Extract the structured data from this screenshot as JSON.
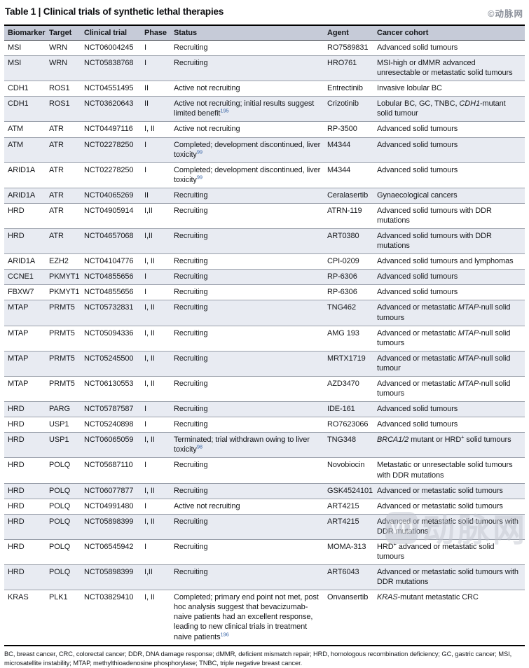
{
  "page": {
    "title": "Table 1 | Clinical trials of synthetic lethal therapies",
    "watermark_top": "©动脉网",
    "watermark_bottom_text": "动脉网",
    "watermark_logo": "VD"
  },
  "colors": {
    "header_bg": "#c6cbd8",
    "row_shaded_bg": "#e8ebf2",
    "reference_superscript": "#3a66a7",
    "border_heavy": "#000000",
    "row_separator": "#9aa0ab"
  },
  "table": {
    "columns": [
      "Biomarker",
      "Target",
      "Clinical trial",
      "Phase",
      "Status",
      "Agent",
      "Cancer cohort"
    ],
    "rows": [
      {
        "biomarker": "MSI",
        "target": "WRN",
        "trial": "NCT06004245",
        "phase": "I",
        "status": [
          {
            "t": "Recruiting"
          }
        ],
        "agent": "RO7589831",
        "cohort": [
          {
            "t": "Advanced solid tumours"
          }
        ]
      },
      {
        "biomarker": "MSI",
        "target": "WRN",
        "trial": "NCT05838768",
        "phase": "I",
        "status": [
          {
            "t": "Recruiting"
          }
        ],
        "agent": "HRO761",
        "cohort": [
          {
            "t": "MSI-high or dMMR advanced unresectable or metastatic solid tumours"
          }
        ]
      },
      {
        "biomarker": "CDH1",
        "target": "ROS1",
        "trial": "NCT04551495",
        "phase": "II",
        "status": [
          {
            "t": "Active not recruiting"
          }
        ],
        "agent": "Entrectinib",
        "cohort": [
          {
            "t": "Invasive lobular BC"
          }
        ]
      },
      {
        "biomarker": "CDH1",
        "target": "ROS1",
        "trial": "NCT03620643",
        "phase": "II",
        "status": [
          {
            "t": "Active not recruiting; initial results suggest limited benefit"
          },
          {
            "t": "195",
            "ref": true
          }
        ],
        "agent": "Crizotinib",
        "cohort": [
          {
            "t": "Lobular BC, GC, TNBC, "
          },
          {
            "t": "CDH1",
            "i": true
          },
          {
            "t": "-mutant solid tumour"
          }
        ]
      },
      {
        "biomarker": "ATM",
        "target": "ATR",
        "trial": "NCT04497116",
        "phase": "I, II",
        "status": [
          {
            "t": "Active not recruiting"
          }
        ],
        "agent": "RP-3500",
        "cohort": [
          {
            "t": "Advanced solid tumours"
          }
        ]
      },
      {
        "biomarker": "ATM",
        "target": "ATR",
        "trial": "NCT02278250",
        "phase": "I",
        "status": [
          {
            "t": "Completed; development discontinued, liver toxicity"
          },
          {
            "t": "99",
            "ref": true
          }
        ],
        "agent": "M4344",
        "cohort": [
          {
            "t": "Advanced solid tumours"
          }
        ]
      },
      {
        "biomarker": "ARID1A",
        "target": "ATR",
        "trial": "NCT02278250",
        "phase": "I",
        "status": [
          {
            "t": "Completed; development discontinued, liver toxicity"
          },
          {
            "t": "99",
            "ref": true
          }
        ],
        "agent": "M4344",
        "cohort": [
          {
            "t": "Advanced solid tumours"
          }
        ]
      },
      {
        "biomarker": "ARID1A",
        "target": "ATR",
        "trial": "NCT04065269",
        "phase": "II",
        "status": [
          {
            "t": "Recruiting"
          }
        ],
        "agent": "Ceralasertib",
        "cohort": [
          {
            "t": "Gynaecological cancers"
          }
        ]
      },
      {
        "biomarker": "HRD",
        "target": "ATR",
        "trial": "NCT04905914",
        "phase": "I,II",
        "status": [
          {
            "t": "Recruiting"
          }
        ],
        "agent": "ATRN-119",
        "cohort": [
          {
            "t": "Advanced solid tumours with DDR mutations"
          }
        ]
      },
      {
        "biomarker": "HRD",
        "target": "ATR",
        "trial": "NCT04657068",
        "phase": "I,II",
        "status": [
          {
            "t": "Recruiting"
          }
        ],
        "agent": "ART0380",
        "cohort": [
          {
            "t": "Advanced solid tumours with DDR mutations"
          }
        ]
      },
      {
        "biomarker": "ARID1A",
        "target": "EZH2",
        "trial": "NCT04104776",
        "phase": "I, II",
        "status": [
          {
            "t": "Recruiting"
          }
        ],
        "agent": "CPI-0209",
        "cohort": [
          {
            "t": "Advanced solid tumours and lymphomas"
          }
        ]
      },
      {
        "biomarker": "CCNE1",
        "target": "PKMYT1",
        "trial": "NCT04855656",
        "phase": "I",
        "status": [
          {
            "t": "Recruiting"
          }
        ],
        "agent": "RP-6306",
        "cohort": [
          {
            "t": "Advanced solid tumours"
          }
        ]
      },
      {
        "biomarker": "FBXW7",
        "target": "PKMYT1",
        "trial": "NCT04855656",
        "phase": "I",
        "status": [
          {
            "t": "Recruiting"
          }
        ],
        "agent": "RP-6306",
        "cohort": [
          {
            "t": "Advanced solid tumours"
          }
        ]
      },
      {
        "biomarker": "MTAP",
        "target": "PRMT5",
        "trial": "NCT05732831",
        "phase": "I, II",
        "status": [
          {
            "t": "Recruiting"
          }
        ],
        "agent": "TNG462",
        "cohort": [
          {
            "t": "Advanced or metastatic "
          },
          {
            "t": "MTAP",
            "i": true
          },
          {
            "t": "-null solid tumours"
          }
        ]
      },
      {
        "biomarker": "MTAP",
        "target": "PRMT5",
        "trial": "NCT05094336",
        "phase": "I, II",
        "status": [
          {
            "t": "Recruiting"
          }
        ],
        "agent": "AMG 193",
        "cohort": [
          {
            "t": "Advanced or metastatic "
          },
          {
            "t": "MTAP",
            "i": true
          },
          {
            "t": "-null solid tumours"
          }
        ]
      },
      {
        "biomarker": "MTAP",
        "target": "PRMT5",
        "trial": "NCT05245500",
        "phase": "I, II",
        "status": [
          {
            "t": "Recruiting"
          }
        ],
        "agent": "MRTX1719",
        "cohort": [
          {
            "t": "Advanced or metastatic "
          },
          {
            "t": "MTAP",
            "i": true
          },
          {
            "t": "-null solid tumour"
          }
        ]
      },
      {
        "biomarker": "MTAP",
        "target": "PRMT5",
        "trial": "NCT06130553",
        "phase": "I, II",
        "status": [
          {
            "t": "Recruiting"
          }
        ],
        "agent": "AZD3470",
        "cohort": [
          {
            "t": "Advanced or metastatic "
          },
          {
            "t": "MTAP",
            "i": true
          },
          {
            "t": "-null solid tumours"
          }
        ]
      },
      {
        "biomarker": "HRD",
        "target": "PARG",
        "trial": "NCT05787587",
        "phase": "I",
        "status": [
          {
            "t": "Recruiting"
          }
        ],
        "agent": "IDE-161",
        "cohort": [
          {
            "t": "Advanced solid tumours"
          }
        ]
      },
      {
        "biomarker": "HRD",
        "target": "USP1",
        "trial": "NCT05240898",
        "phase": "I",
        "status": [
          {
            "t": "Recruiting"
          }
        ],
        "agent": "RO7623066",
        "cohort": [
          {
            "t": "Advanced solid tumours"
          }
        ]
      },
      {
        "biomarker": "HRD",
        "target": "USP1",
        "trial": "NCT06065059",
        "phase": "I, II",
        "status": [
          {
            "t": "Terminated; trial withdrawn owing to liver toxicity"
          },
          {
            "t": "98",
            "ref": true
          }
        ],
        "agent": "TNG348",
        "cohort": [
          {
            "t": "BRCA1/2",
            "i": true
          },
          {
            "t": " mutant or HRD"
          },
          {
            "t": "+",
            "sup": true
          },
          {
            "t": " solid tumours"
          }
        ]
      },
      {
        "biomarker": "HRD",
        "target": "POLQ",
        "trial": "NCT05687110",
        "phase": "I",
        "status": [
          {
            "t": "Recruiting"
          }
        ],
        "agent": "Novobiocin",
        "cohort": [
          {
            "t": "Metastatic or unresectable solid tumours with DDR mutations"
          }
        ]
      },
      {
        "biomarker": "HRD",
        "target": "POLQ",
        "trial": "NCT06077877",
        "phase": "I, II",
        "status": [
          {
            "t": "Recruiting"
          }
        ],
        "agent": "GSK4524101",
        "cohort": [
          {
            "t": "Advanced or metastatic solid tumours"
          }
        ]
      },
      {
        "biomarker": "HRD",
        "target": "POLQ",
        "trial": "NCT04991480",
        "phase": "I",
        "status": [
          {
            "t": "Active not recruiting"
          }
        ],
        "agent": "ART4215",
        "cohort": [
          {
            "t": "Advanced or metastatic solid tumours"
          }
        ]
      },
      {
        "biomarker": "HRD",
        "target": "POLQ",
        "trial": "NCT05898399",
        "phase": "I, II",
        "status": [
          {
            "t": "Recruiting"
          }
        ],
        "agent": "ART4215",
        "cohort": [
          {
            "t": "Advanced or metastatic solid tumours with DDR mutations"
          }
        ]
      },
      {
        "biomarker": "HRD",
        "target": "POLQ",
        "trial": "NCT06545942",
        "phase": "I",
        "status": [
          {
            "t": "Recruiting"
          }
        ],
        "agent": "MOMA-313",
        "cohort": [
          {
            "t": "HRD"
          },
          {
            "t": "+",
            "sup": true
          },
          {
            "t": " advanced or metastatic solid tumours"
          }
        ]
      },
      {
        "biomarker": "HRD",
        "target": "POLQ",
        "trial": "NCT05898399",
        "phase": "I,II",
        "status": [
          {
            "t": "Recruiting"
          }
        ],
        "agent": "ART6043",
        "cohort": [
          {
            "t": "Advanced or metastatic solid tumours with DDR mutations"
          }
        ]
      },
      {
        "biomarker": "KRAS",
        "target": "PLK1",
        "trial": "NCT03829410",
        "phase": "I, II",
        "status": [
          {
            "t": "Completed; primary end point not met, post hoc analysis suggest that bevacizumab-naive patients had an excellent response, leading to new clinical trials in treatment naive patients"
          },
          {
            "t": "196",
            "ref": true
          }
        ],
        "agent": "Onvansertib",
        "cohort": [
          {
            "t": "KRAS",
            "i": true
          },
          {
            "t": "-mutant metastatic CRC"
          }
        ]
      }
    ]
  },
  "footnote": "BC, breast cancer, CRC, colorectal cancer; DDR, DNA damage response; dMMR, deficient mismatch repair; HRD, homologous recombination deficiency; GC, gastric cancer; MSI, microsatellite instability; MTAP, methylthioadenosine phosphorylase; TNBC, triple negative breast cancer."
}
